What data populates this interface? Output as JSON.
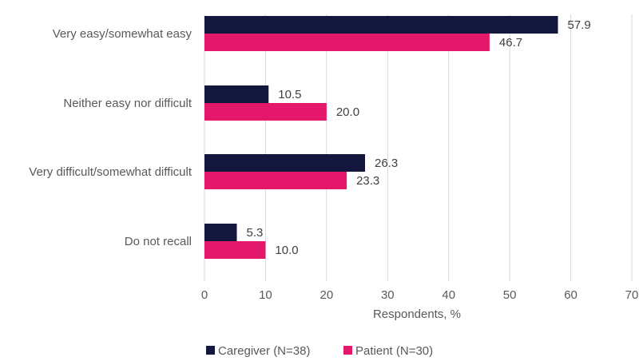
{
  "chart_data": {
    "type": "bar",
    "orientation": "horizontal",
    "categories": [
      "Very easy/somewhat easy",
      "Neither easy nor difficult",
      "Very difficult/somewhat difficult",
      "Do not recall"
    ],
    "series": [
      {
        "name": "Caregiver (N=38)",
        "color": "#14173d",
        "values": [
          57.9,
          10.5,
          26.3,
          5.3
        ],
        "labels": [
          "57.9",
          "10.5",
          "26.3",
          "5.3"
        ]
      },
      {
        "name": "Patient (N=30)",
        "color": "#e3186b",
        "values": [
          46.7,
          20.0,
          23.3,
          10.0
        ],
        "labels": [
          "46.7",
          "20.0",
          "23.3",
          "10.0"
        ]
      }
    ],
    "xlabel": "Respondents, %",
    "ylabel": "",
    "xlim": [
      0,
      70
    ],
    "xticks": [
      0,
      10,
      20,
      30,
      40,
      50,
      60,
      70
    ],
    "grid": true,
    "legend": "bottom-center"
  }
}
